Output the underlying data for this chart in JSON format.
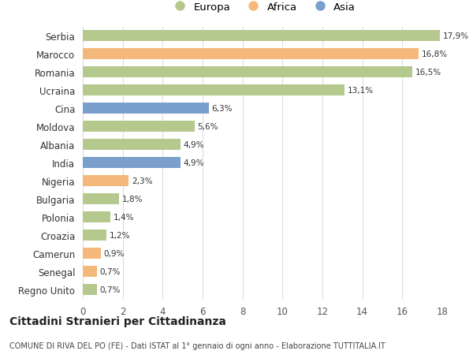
{
  "categories": [
    "Serbia",
    "Marocco",
    "Romania",
    "Ucraina",
    "Cina",
    "Moldova",
    "Albania",
    "India",
    "Nigeria",
    "Bulgaria",
    "Polonia",
    "Croazia",
    "Camerun",
    "Senegal",
    "Regno Unito"
  ],
  "values": [
    17.9,
    16.8,
    16.5,
    13.1,
    6.3,
    5.6,
    4.9,
    4.9,
    2.3,
    1.8,
    1.4,
    1.2,
    0.9,
    0.7,
    0.7
  ],
  "labels": [
    "17,9%",
    "16,8%",
    "16,5%",
    "13,1%",
    "6,3%",
    "5,6%",
    "4,9%",
    "4,9%",
    "2,3%",
    "1,8%",
    "1,4%",
    "1,2%",
    "0,9%",
    "0,7%",
    "0,7%"
  ],
  "continents": [
    "Europa",
    "Africa",
    "Europa",
    "Europa",
    "Asia",
    "Europa",
    "Europa",
    "Asia",
    "Africa",
    "Europa",
    "Europa",
    "Europa",
    "Africa",
    "Africa",
    "Europa"
  ],
  "colors": {
    "Europa": "#b5c98e",
    "Africa": "#f4b97a",
    "Asia": "#7b9fcc"
  },
  "xlim": [
    0,
    18
  ],
  "xticks": [
    0,
    2,
    4,
    6,
    8,
    10,
    12,
    14,
    16,
    18
  ],
  "title": "Cittadini Stranieri per Cittadinanza",
  "subtitle": "COMUNE DI RIVA DEL PO (FE) - Dati ISTAT al 1° gennaio di ogni anno - Elaborazione TUTTITALIA.IT",
  "background_color": "#ffffff",
  "grid_color": "#dddddd",
  "bar_height": 0.6
}
